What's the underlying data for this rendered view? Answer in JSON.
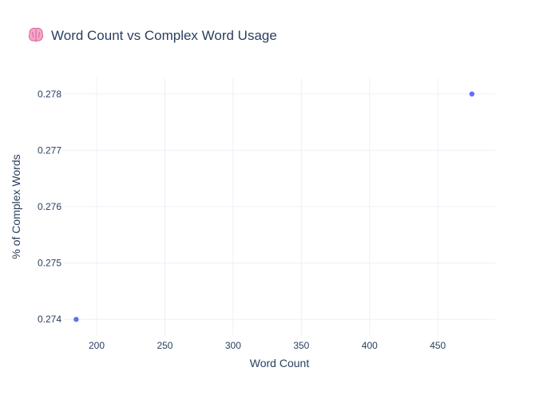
{
  "chart_data": {
    "type": "scatter",
    "title": "Word Count vs Complex Word Usage",
    "title_icon": "brain-icon",
    "xlabel": "Word Count",
    "ylabel": "% of Complex Words",
    "x_ticks": [
      "200",
      "250",
      "300",
      "350",
      "400",
      "450"
    ],
    "y_ticks": [
      "0.274",
      "0.275",
      "0.276",
      "0.277",
      "0.278"
    ],
    "xlim": [
      176,
      492
    ],
    "ylim": [
      0.27372,
      0.27828
    ],
    "grid": true,
    "points": [
      {
        "x": 185,
        "y": 0.274
      },
      {
        "x": 475,
        "y": 0.278
      }
    ],
    "marker_color": "#636efa"
  }
}
